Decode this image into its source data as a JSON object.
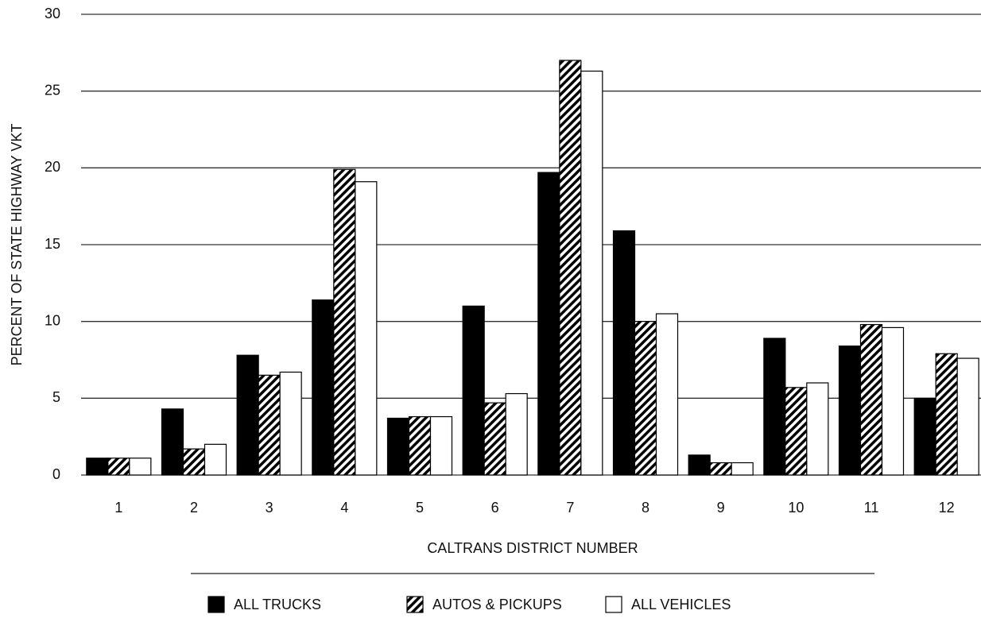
{
  "chart_data": {
    "type": "bar",
    "xlabel": "CALTRANS DISTRICT NUMBER",
    "ylabel": "PERCENT OF STATE HIGHWAY VKT",
    "categories": [
      "1",
      "2",
      "3",
      "4",
      "5",
      "6",
      "7",
      "8",
      "9",
      "10",
      "11",
      "12"
    ],
    "series": [
      {
        "name": "ALL TRUCKS",
        "color": "#000000",
        "hatch": false,
        "values": [
          1.1,
          4.3,
          7.8,
          11.4,
          3.7,
          11.0,
          19.7,
          15.9,
          1.3,
          8.9,
          8.4,
          5.0
        ]
      },
      {
        "name": "AUTOS & PICKUPS",
        "color": "#000000",
        "hatch": true,
        "values": [
          1.1,
          1.7,
          6.5,
          19.9,
          3.8,
          4.7,
          27.0,
          10.0,
          0.8,
          5.7,
          9.8,
          7.9
        ]
      },
      {
        "name": "ALL VEHICLES",
        "color": "#ffffff",
        "hatch": false,
        "values": [
          1.1,
          2.0,
          6.7,
          19.1,
          3.8,
          5.3,
          26.3,
          10.5,
          0.8,
          6.0,
          9.6,
          7.6
        ]
      }
    ],
    "ylim": [
      0,
      30
    ],
    "yticks": [
      0,
      5,
      10,
      15,
      20,
      25,
      30
    ],
    "grid": true,
    "legend": "bottom"
  }
}
